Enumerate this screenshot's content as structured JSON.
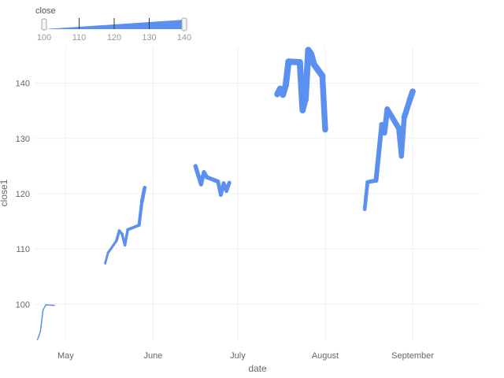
{
  "chart_data": {
    "type": "line",
    "xlabel": "date",
    "ylabel": "close1",
    "x_type": "date",
    "xlim": [
      "2023-04-20",
      "2023-09-25"
    ],
    "ylim": [
      93.5,
      146.5
    ],
    "x_ticks": [
      {
        "date": "2023-05-01",
        "label": "May"
      },
      {
        "date": "2023-06-01",
        "label": "June"
      },
      {
        "date": "2023-07-01",
        "label": "July"
      },
      {
        "date": "2023-08-01",
        "label": "August"
      },
      {
        "date": "2023-09-01",
        "label": "September"
      }
    ],
    "y_ticks": [
      100,
      110,
      120,
      130,
      140
    ],
    "grid": true,
    "line_color": "#5b8ff0",
    "size_encoding": "close",
    "size_range": [
      100,
      140
    ],
    "segments": [
      {
        "points": [
          {
            "date": "2023-04-21",
            "close": 93.6
          },
          {
            "date": "2023-04-22",
            "close": 95.0
          },
          {
            "date": "2023-04-23",
            "close": 99.0
          },
          {
            "date": "2023-04-24",
            "close": 99.9
          },
          {
            "date": "2023-04-27",
            "close": 99.8
          }
        ]
      },
      {
        "points": [
          {
            "date": "2023-05-15",
            "close": 107.4
          },
          {
            "date": "2023-05-16",
            "close": 109.3
          },
          {
            "date": "2023-05-19",
            "close": 111.5
          },
          {
            "date": "2023-05-20",
            "close": 113.3
          },
          {
            "date": "2023-05-21",
            "close": 112.7
          },
          {
            "date": "2023-05-22",
            "close": 110.7
          },
          {
            "date": "2023-05-23",
            "close": 113.5
          },
          {
            "date": "2023-05-27",
            "close": 114.3
          },
          {
            "date": "2023-05-28",
            "close": 118.5
          },
          {
            "date": "2023-05-29",
            "close": 121.1
          }
        ]
      },
      {
        "points": [
          {
            "date": "2023-06-16",
            "close": 125.0
          },
          {
            "date": "2023-06-18",
            "close": 121.7
          },
          {
            "date": "2023-06-19",
            "close": 123.9
          },
          {
            "date": "2023-06-20",
            "close": 123.0
          },
          {
            "date": "2023-06-24",
            "close": 122.2
          },
          {
            "date": "2023-06-25",
            "close": 119.8
          },
          {
            "date": "2023-06-26",
            "close": 121.9
          },
          {
            "date": "2023-06-27",
            "close": 120.5
          },
          {
            "date": "2023-06-28",
            "close": 122.0
          }
        ]
      },
      {
        "points": [
          {
            "date": "2023-07-15",
            "close": 138.0
          },
          {
            "date": "2023-07-16",
            "close": 139.0
          },
          {
            "date": "2023-07-17",
            "close": 137.9
          },
          {
            "date": "2023-07-18",
            "close": 139.6
          },
          {
            "date": "2023-07-19",
            "close": 143.9
          },
          {
            "date": "2023-07-23",
            "close": 143.8
          },
          {
            "date": "2023-07-24",
            "close": 135.1
          },
          {
            "date": "2023-07-25",
            "close": 137.0
          },
          {
            "date": "2023-07-26",
            "close": 146.0
          },
          {
            "date": "2023-07-27",
            "close": 145.3
          },
          {
            "date": "2023-07-28",
            "close": 143.4
          },
          {
            "date": "2023-07-31",
            "close": 141.3
          },
          {
            "date": "2023-08-01",
            "close": 131.6
          }
        ]
      },
      {
        "points": [
          {
            "date": "2023-08-15",
            "close": 117.2
          },
          {
            "date": "2023-08-16",
            "close": 122.1
          },
          {
            "date": "2023-08-19",
            "close": 122.4
          },
          {
            "date": "2023-08-21",
            "close": 132.5
          },
          {
            "date": "2023-08-22",
            "close": 131.0
          },
          {
            "date": "2023-08-23",
            "close": 135.3
          },
          {
            "date": "2023-08-27",
            "close": 131.9
          },
          {
            "date": "2023-08-28",
            "close": 126.8
          },
          {
            "date": "2023-08-29",
            "close": 133.8
          },
          {
            "date": "2023-08-31",
            "close": 137.0
          },
          {
            "date": "2023-09-01",
            "close": 138.5
          }
        ]
      }
    ]
  },
  "legend": {
    "title": "close",
    "ticks": [
      100,
      110,
      120,
      130,
      140
    ],
    "color": "#5b8ff0"
  }
}
